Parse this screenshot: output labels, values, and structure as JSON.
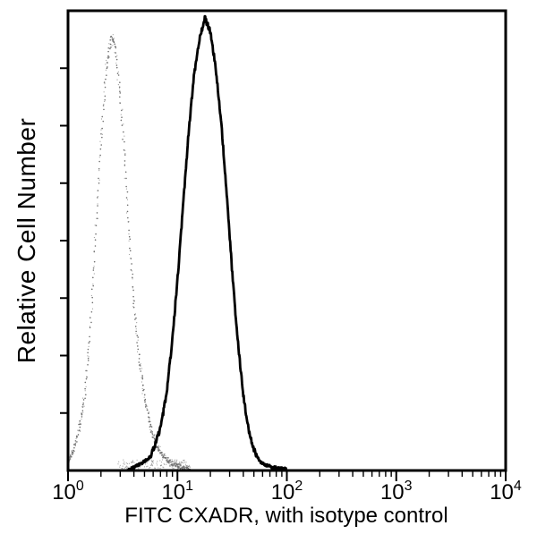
{
  "figure": {
    "background": "#ffffff",
    "border_color": "#000000"
  },
  "chart_data": {
    "type": "line",
    "subtype": "flow-cytometry-overlay-histogram",
    "title": "",
    "xlabel": "FITC CXADR, with isotype control",
    "ylabel": "Relative Cell Number",
    "x_scale": "log10",
    "x_range": [
      1,
      10000
    ],
    "x_range_log10": [
      0,
      4
    ],
    "x_tick_base": "10",
    "x_tick_exponents": [
      "0",
      "1",
      "2",
      "3",
      "4"
    ],
    "y_axis_tick_count": 7,
    "y_axis_numeric_labels": false,
    "grid": false,
    "legend": "none",
    "series": [
      {
        "name": "isotype control",
        "style": "dotted",
        "color": "#6e6e6e",
        "halo_color": "#8a8a8a",
        "peak_x": 2.5,
        "peak_height": 0.96,
        "points_log10x_height": [
          [
            0.0,
            0.02
          ],
          [
            0.05,
            0.04
          ],
          [
            0.1,
            0.09
          ],
          [
            0.15,
            0.16
          ],
          [
            0.2,
            0.3
          ],
          [
            0.25,
            0.5
          ],
          [
            0.3,
            0.72
          ],
          [
            0.35,
            0.89
          ],
          [
            0.4,
            0.96
          ],
          [
            0.44,
            0.93
          ],
          [
            0.48,
            0.82
          ],
          [
            0.52,
            0.68
          ],
          [
            0.56,
            0.52
          ],
          [
            0.6,
            0.38
          ],
          [
            0.65,
            0.25
          ],
          [
            0.7,
            0.16
          ],
          [
            0.75,
            0.1
          ],
          [
            0.8,
            0.06
          ],
          [
            0.85,
            0.04
          ],
          [
            0.9,
            0.025
          ],
          [
            0.95,
            0.015
          ],
          [
            1.0,
            0.01
          ],
          [
            1.05,
            0.006
          ],
          [
            1.1,
            0.004
          ]
        ]
      },
      {
        "name": "FITC CXADR",
        "style": "solid",
        "color": "#000000",
        "peak_x": 18,
        "peak_height": 1.0,
        "points_log10x_height": [
          [
            0.55,
            0.0
          ],
          [
            0.62,
            0.01
          ],
          [
            0.7,
            0.02
          ],
          [
            0.75,
            0.03
          ],
          [
            0.8,
            0.06
          ],
          [
            0.85,
            0.1
          ],
          [
            0.9,
            0.17
          ],
          [
            0.95,
            0.28
          ],
          [
            1.0,
            0.42
          ],
          [
            1.05,
            0.58
          ],
          [
            1.1,
            0.74
          ],
          [
            1.15,
            0.87
          ],
          [
            1.2,
            0.95
          ],
          [
            1.25,
            1.0
          ],
          [
            1.3,
            0.97
          ],
          [
            1.35,
            0.89
          ],
          [
            1.4,
            0.77
          ],
          [
            1.45,
            0.61
          ],
          [
            1.5,
            0.44
          ],
          [
            1.55,
            0.29
          ],
          [
            1.6,
            0.17
          ],
          [
            1.65,
            0.09
          ],
          [
            1.7,
            0.045
          ],
          [
            1.75,
            0.02
          ],
          [
            1.8,
            0.012
          ],
          [
            1.9,
            0.006
          ],
          [
            2.0,
            0.004
          ]
        ]
      }
    ]
  }
}
